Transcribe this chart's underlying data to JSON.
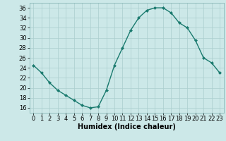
{
  "x": [
    0,
    1,
    2,
    3,
    4,
    5,
    6,
    7,
    8,
    9,
    10,
    11,
    12,
    13,
    14,
    15,
    16,
    17,
    18,
    19,
    20,
    21,
    22,
    23
  ],
  "y": [
    24.5,
    23.0,
    21.0,
    19.5,
    18.5,
    17.5,
    16.5,
    16.0,
    16.2,
    19.5,
    24.5,
    28.0,
    31.5,
    34.0,
    35.5,
    36.0,
    36.0,
    35.0,
    33.0,
    32.0,
    29.5,
    26.0,
    25.0,
    23.0
  ],
  "line_color": "#1a7a6e",
  "marker": "D",
  "markersize": 2,
  "xlabel": "Humidex (Indice chaleur)",
  "ylim": [
    15,
    37
  ],
  "xlim": [
    -0.5,
    23.5
  ],
  "yticks": [
    16,
    18,
    20,
    22,
    24,
    26,
    28,
    30,
    32,
    34,
    36
  ],
  "xticks": [
    0,
    1,
    2,
    3,
    4,
    5,
    6,
    7,
    8,
    9,
    10,
    11,
    12,
    13,
    14,
    15,
    16,
    17,
    18,
    19,
    20,
    21,
    22,
    23
  ],
  "bg_color": "#cce8e8",
  "grid_color": "#aacece",
  "xlabel_fontsize": 7,
  "tick_fontsize": 6,
  "linewidth": 1.0
}
